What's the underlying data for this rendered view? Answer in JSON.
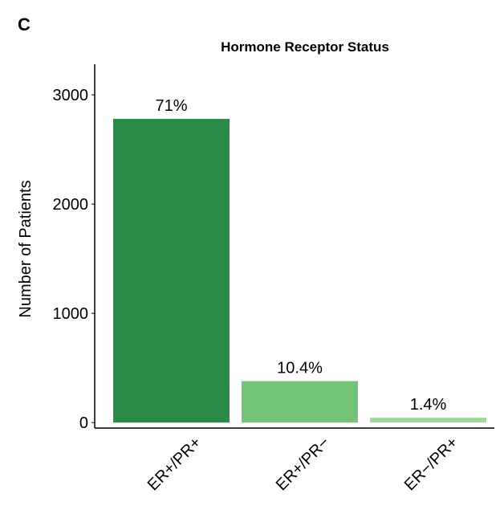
{
  "chart_data": {
    "type": "bar",
    "panel_label": "C",
    "title": "Hormone Receptor Status",
    "y_label": "Number of Patients",
    "categories": [
      "ER+/PR+",
      "ER+/PR−",
      "ER−/PR+"
    ],
    "values": [
      2780,
      380,
      45
    ],
    "colors": [
      "#2a8a48",
      "#74c476",
      "#a1d99b"
    ],
    "percent_labels": [
      "71%",
      "10.4%",
      "1.4%"
    ],
    "ylim": [
      -50,
      3280
    ],
    "yticks": [
      0,
      1000,
      2000,
      3000
    ]
  }
}
